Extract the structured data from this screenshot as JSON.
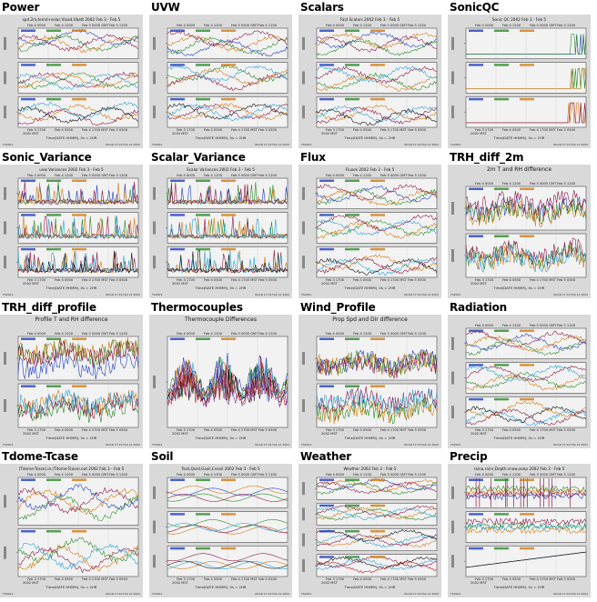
{
  "page_title": "",
  "colors": {
    "thumb_bg": "#d9d9d9",
    "panel_bg": "#f2f2f2",
    "axis": "#333333",
    "series": [
      "#1f3fbf",
      "#2b8a2b",
      "#d07a10",
      "#8b1a4a",
      "#2aa4d6",
      "#111111",
      "#c01818",
      "#7b3fa0"
    ]
  },
  "plots": [
    {
      "name": "Power",
      "header": "spd.2m,temd+solar,Vload,Vbatt 2002 Feb 3 - Feb 5",
      "panels": 3,
      "kind": "line"
    },
    {
      "name": "UVW",
      "header": "",
      "panels": 3,
      "kind": "line"
    },
    {
      "name": "Scalars",
      "header": "Fast Scalars 2002 Feb 3 - Feb 5",
      "panels": 3,
      "kind": "line"
    },
    {
      "name": "SonicQC",
      "header": "Sonic QC 2002 Feb 3 - Feb 5",
      "panels": 3,
      "kind": "sparse"
    },
    {
      "name": "Sonic_Variance",
      "header": "uvw Variances 2002 Feb 3 - Feb 5",
      "panels": 3,
      "kind": "spiky"
    },
    {
      "name": "Scalar_Variance",
      "header": "Scalar Variances 2002 Feb 3 - Feb 5",
      "panels": 3,
      "kind": "spiky"
    },
    {
      "name": "Flux",
      "header": "Fluxes 2002 Feb 3 - Feb 5",
      "panels": 3,
      "kind": "line"
    },
    {
      "name": "TRH_diff_2m",
      "header": "2m T and RH difference",
      "panels": 2,
      "kind": "noisy"
    },
    {
      "name": "TRH_diff_profile",
      "header": "Profile T and RH difference",
      "panels": 2,
      "kind": "noisy"
    },
    {
      "name": "Thermocouples",
      "header": "Thermocouple Differences",
      "panels": 1,
      "kind": "spiky"
    },
    {
      "name": "Wind_Profile",
      "header": "Prop Spd and Dir difference",
      "panels": 2,
      "kind": "noisy"
    },
    {
      "name": "Radiation",
      "header": "",
      "panels": 3,
      "kind": "line"
    },
    {
      "name": "Tdome-Tcase",
      "header": "(Tdome-Tcase).in,(Tdome-Tcase).out 2002 Feb 3 - Feb 5",
      "panels": 2,
      "kind": "line"
    },
    {
      "name": "Soil",
      "header": "Tsoil,Qsoil,Gsoil,Cvsoil 2002 Feb 3 - Feb 5",
      "panels": 3,
      "kind": "smooth"
    },
    {
      "name": "Weather",
      "header": "Weather 2002 Feb 3 - Feb 5",
      "panels": 4,
      "kind": "line"
    },
    {
      "name": "Precip",
      "header": "raina,rainr,Depth.snow,asep 2002 Feb 3 - Feb 5",
      "panels": 3,
      "kind": "precip"
    }
  ],
  "time_axis": {
    "top_ticks": [
      "Feb 4 0000",
      "Feb 4 1200",
      "Feb 5 0000 GMT",
      "Feb 5 1200"
    ],
    "bottom_ticks": [
      "Feb 3 1700",
      "Feb 4 0500",
      "Feb 4 1700 MST",
      "Feb 5 0500"
    ],
    "year_label": "2002 MST",
    "xlabel": "Time(DATE HHMM), 0s = 2HR",
    "footer_left": "TS2001",
    "footer_right": "NCAR 17:19 Feb 12 2002"
  }
}
